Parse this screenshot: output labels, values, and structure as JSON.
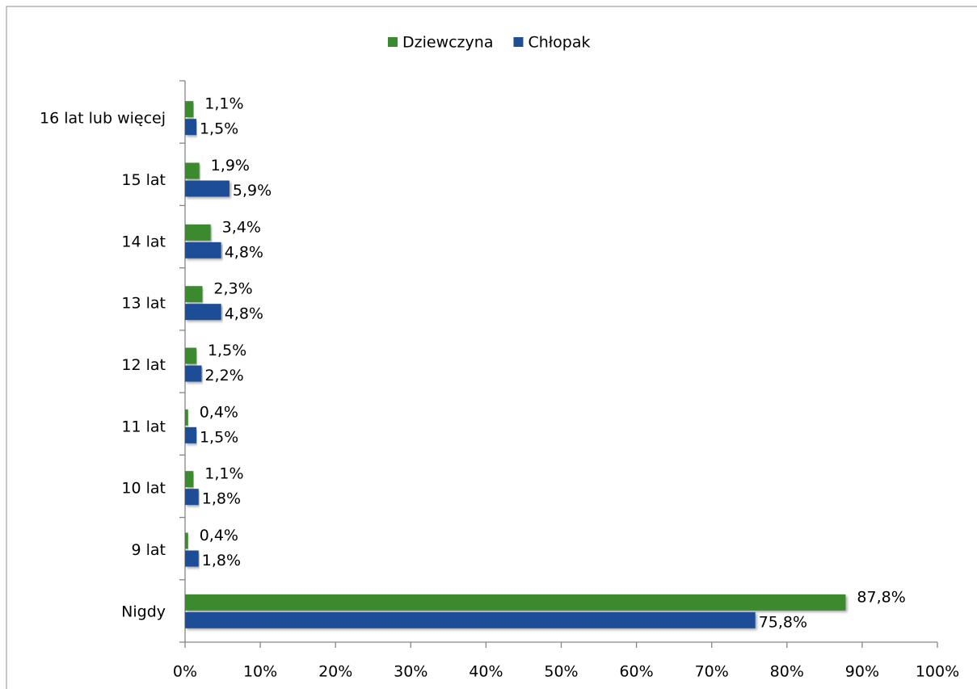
{
  "chart_data": {
    "type": "bar",
    "orientation": "horizontal",
    "categories": [
      "16 lat lub więcej",
      "15 lat",
      "14 lat",
      "13 lat",
      "12 lat",
      "11 lat",
      "10 lat",
      "9 lat",
      "Nigdy"
    ],
    "series": [
      {
        "name": "Dziewczyna",
        "color": "#3a8a2f",
        "values": [
          1.1,
          1.9,
          3.4,
          2.3,
          1.5,
          0.4,
          1.1,
          0.4,
          87.8
        ],
        "value_labels": [
          "1,1%",
          "1,9%",
          "3,4%",
          "2,3%",
          "1,5%",
          "0,4%",
          "1,1%",
          "0,4%",
          "87,8%"
        ]
      },
      {
        "name": "Chłopak",
        "color": "#1f4e96",
        "values": [
          1.5,
          5.9,
          4.8,
          4.8,
          2.2,
          1.5,
          1.8,
          1.8,
          75.8
        ],
        "value_labels": [
          "1,5%",
          "5,9%",
          "4,8%",
          "4,8%",
          "2,2%",
          "1,5%",
          "1,8%",
          "1,8%",
          "75,8%"
        ]
      }
    ],
    "xlim": [
      0,
      100
    ],
    "xticks": [
      {
        "value": 0,
        "label": "0%"
      },
      {
        "value": 10,
        "label": "10%"
      },
      {
        "value": 20,
        "label": "20%"
      },
      {
        "value": 30,
        "label": "30%"
      },
      {
        "value": 40,
        "label": "40%"
      },
      {
        "value": 50,
        "label": "50%"
      },
      {
        "value": 60,
        "label": "60%"
      },
      {
        "value": 70,
        "label": "70%"
      },
      {
        "value": 80,
        "label": "80%"
      },
      {
        "value": 90,
        "label": "90%"
      },
      {
        "value": 100,
        "label": "100%"
      }
    ],
    "legend": "top",
    "grid": false
  }
}
